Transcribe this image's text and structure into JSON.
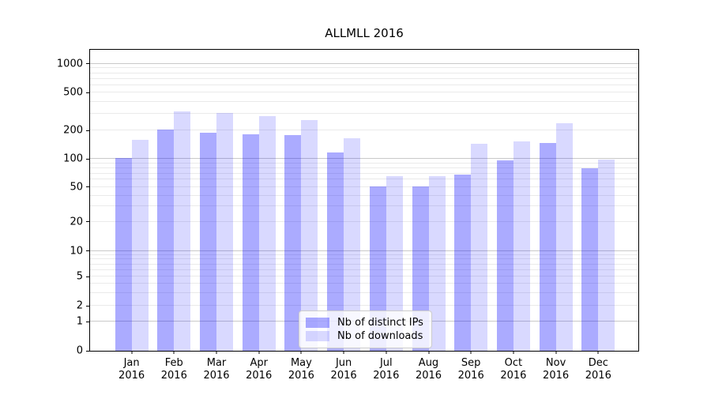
{
  "chart_data": {
    "type": "bar",
    "title": "ALLMLL 2016",
    "categories": [
      "Jan",
      "Feb",
      "Mar",
      "Apr",
      "May",
      "Jun",
      "Jul",
      "Aug",
      "Sep",
      "Oct",
      "Nov",
      "Dec"
    ],
    "category_year": "2016",
    "series": [
      {
        "name": "Nb of distinct IPs",
        "color": "rgba(0,0,255,0.33)",
        "values": [
          103,
          204,
          192,
          184,
          180,
          118,
          51,
          51,
          68,
          97,
          148,
          80
        ]
      },
      {
        "name": "Nb of downloads",
        "color": "rgba(0,0,255,0.15)",
        "values": [
          159,
          321,
          309,
          283,
          258,
          166,
          66,
          65,
          146,
          153,
          238,
          99
        ]
      }
    ],
    "xlabel": "",
    "ylabel": "",
    "yticks": [
      0,
      1,
      2,
      5,
      10,
      20,
      50,
      100,
      200,
      500,
      1000
    ],
    "yscale": "symlog",
    "ylim": [
      0,
      1400
    ],
    "grid": true,
    "grid_major_color": "#c9c9c9",
    "grid_minor_color": "#eaeaea",
    "legend_position": "lower center",
    "text_color": "#000000"
  }
}
